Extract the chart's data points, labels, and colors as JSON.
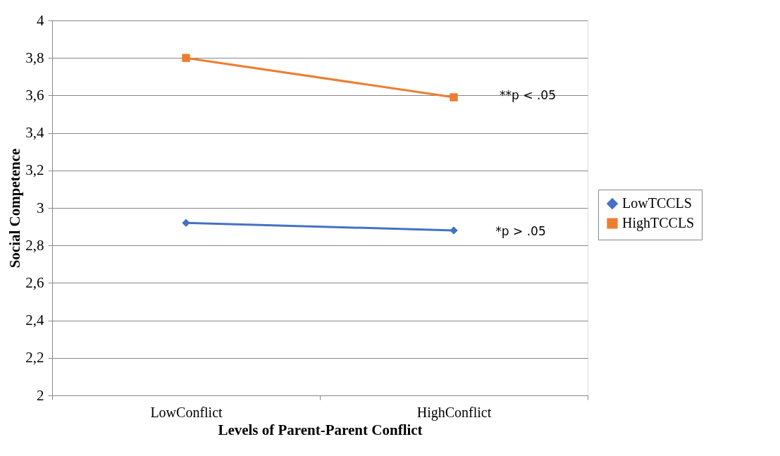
{
  "chart_data": {
    "type": "line",
    "xlabel": "Levels of Parent-Parent Conflict",
    "ylabel": "Social Competence",
    "categories": [
      "LowConflict",
      "HighConflict"
    ],
    "series": [
      {
        "name": "LowTCCLS",
        "color": "#4472c4",
        "values": [
          2.92,
          2.88
        ],
        "marker": "diamond"
      },
      {
        "name": "HighTCCLS",
        "color": "#ed7d31",
        "values": [
          3.8,
          3.59
        ],
        "marker": "square"
      }
    ],
    "ylim": [
      2,
      4
    ],
    "yticks": [
      2,
      {
        "value": 2.2,
        "label": "2,2"
      },
      {
        "value": 2.4,
        "label": "2,4"
      },
      {
        "value": 2.6,
        "label": "2,6"
      },
      {
        "value": 2.8,
        "label": "2,8"
      },
      3,
      {
        "value": 3.2,
        "label": "3,2"
      },
      {
        "value": 3.4,
        "label": "3,4"
      },
      {
        "value": 3.6,
        "label": "3,6"
      },
      {
        "value": 3.8,
        "label": "3,8"
      },
      4
    ],
    "annotations": [
      "**p < .05",
      "*p > .05"
    ],
    "grid": "y",
    "legend": "right",
    "line_style": "solid"
  }
}
